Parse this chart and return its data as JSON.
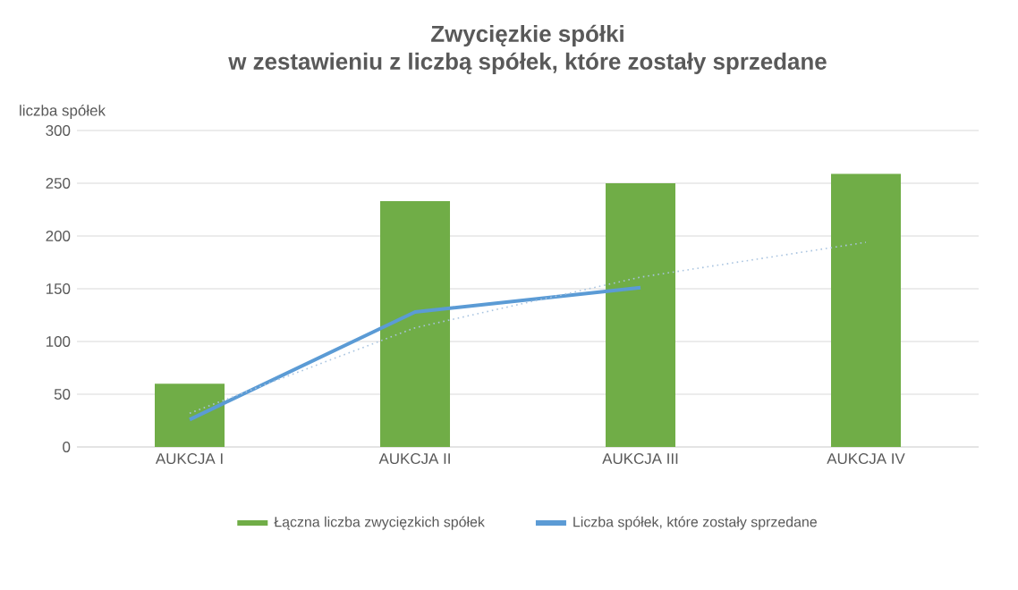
{
  "chart_data": {
    "type": "bar",
    "title": "Zwycięzkie spółki",
    "subtitle": "w zestawieniu z liczbą spółek, które zostały sprzedane",
    "ylabel": "liczba spółek",
    "categories": [
      "AUKCJA I",
      "AUKCJA II",
      "AUKCJA III",
      "AUKCJA IV"
    ],
    "series": [
      {
        "name": "Łączna liczba zwycięzkich spółek",
        "color": "#70ad47",
        "values": [
          60,
          233,
          250,
          259
        ]
      },
      {
        "name": "Liczba spółek, które zostały sprzedane",
        "type": "line",
        "color": "#5b9bd5",
        "values": [
          26,
          128,
          151,
          null
        ]
      },
      {
        "type": "line",
        "color": "#a9c4e0",
        "line_style": "dotted",
        "values": [
          32,
          113,
          161,
          194
        ]
      }
    ],
    "ylim": [
      0,
      300
    ],
    "yticks": [
      0,
      50,
      100,
      150,
      200,
      250,
      300
    ],
    "grid": "y",
    "legend": "bottom",
    "marker": "none"
  }
}
